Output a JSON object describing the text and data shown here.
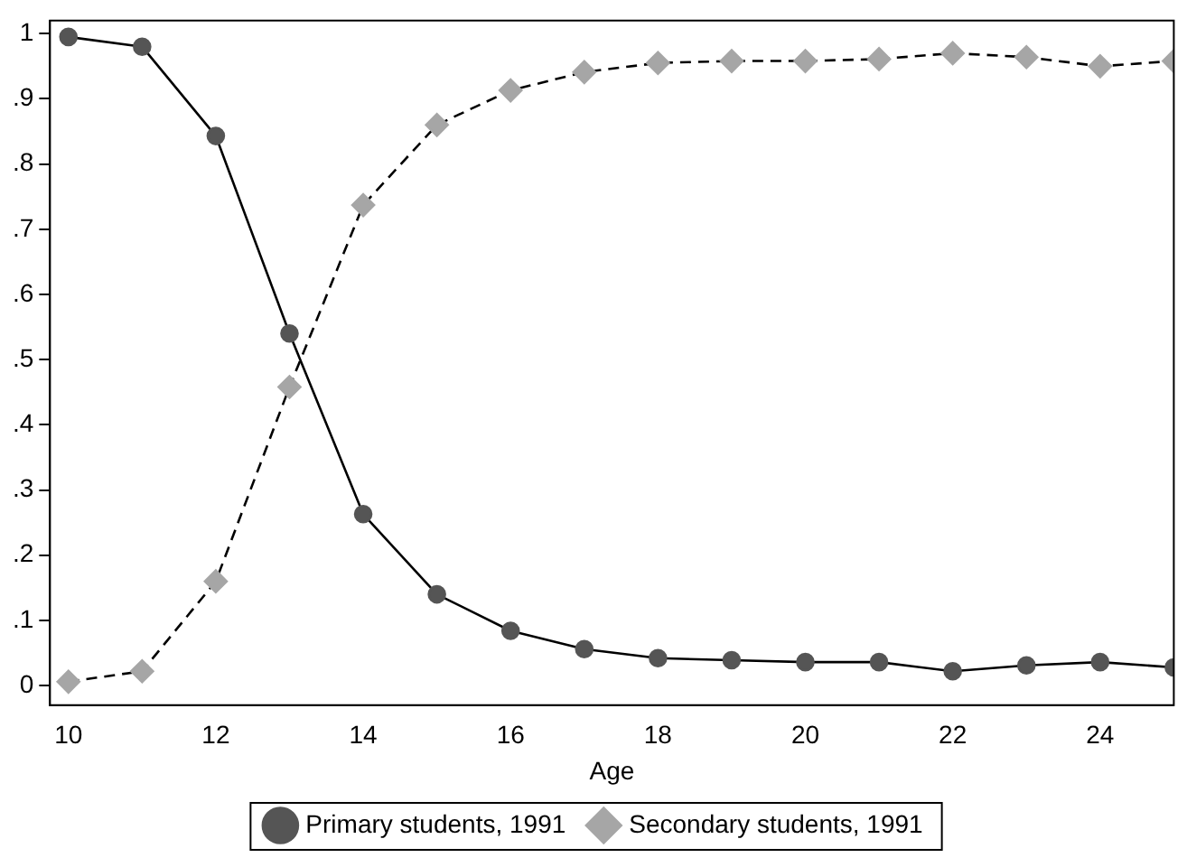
{
  "chart_data": {
    "type": "line",
    "xlabel": "Age",
    "x": [
      10,
      11,
      12,
      13,
      14,
      15,
      16,
      17,
      18,
      19,
      20,
      21,
      22,
      23,
      24,
      25
    ],
    "series": [
      {
        "name": "Primary students, 1991",
        "color": "#555555",
        "marker": "circle",
        "line_style": "solid",
        "values": [
          0.995,
          0.98,
          0.843,
          0.54,
          0.263,
          0.14,
          0.084,
          0.056,
          0.042,
          0.039,
          0.036,
          0.036,
          0.022,
          0.031,
          0.036,
          0.028
        ]
      },
      {
        "name": "Secondary students, 1991",
        "color": "#a6a6a6",
        "marker": "diamond",
        "line_style": "dashed",
        "values": [
          0.006,
          0.022,
          0.16,
          0.458,
          0.737,
          0.86,
          0.913,
          0.941,
          0.955,
          0.958,
          0.958,
          0.961,
          0.97,
          0.964,
          0.95,
          0.958
        ]
      }
    ],
    "xlim": [
      9.75,
      25
    ],
    "xticks": [
      10,
      12,
      14,
      16,
      18,
      20,
      22,
      24
    ],
    "ylim": [
      -0.03,
      1.02
    ],
    "yticks": [
      0,
      {
        "value": 0.1,
        "label": ".1"
      },
      {
        "value": 0.2,
        "label": ".2"
      },
      {
        "value": 0.3,
        "label": ".3"
      },
      {
        "value": 0.4,
        "label": ".4"
      },
      {
        "value": 0.5,
        "label": ".5"
      },
      {
        "value": 0.6,
        "label": ".6"
      },
      {
        "value": 0.7,
        "label": ".7"
      },
      {
        "value": 0.8,
        "label": ".8"
      },
      {
        "value": 0.9,
        "label": ".9"
      },
      1
    ],
    "grid": false,
    "legend": "bottom"
  }
}
